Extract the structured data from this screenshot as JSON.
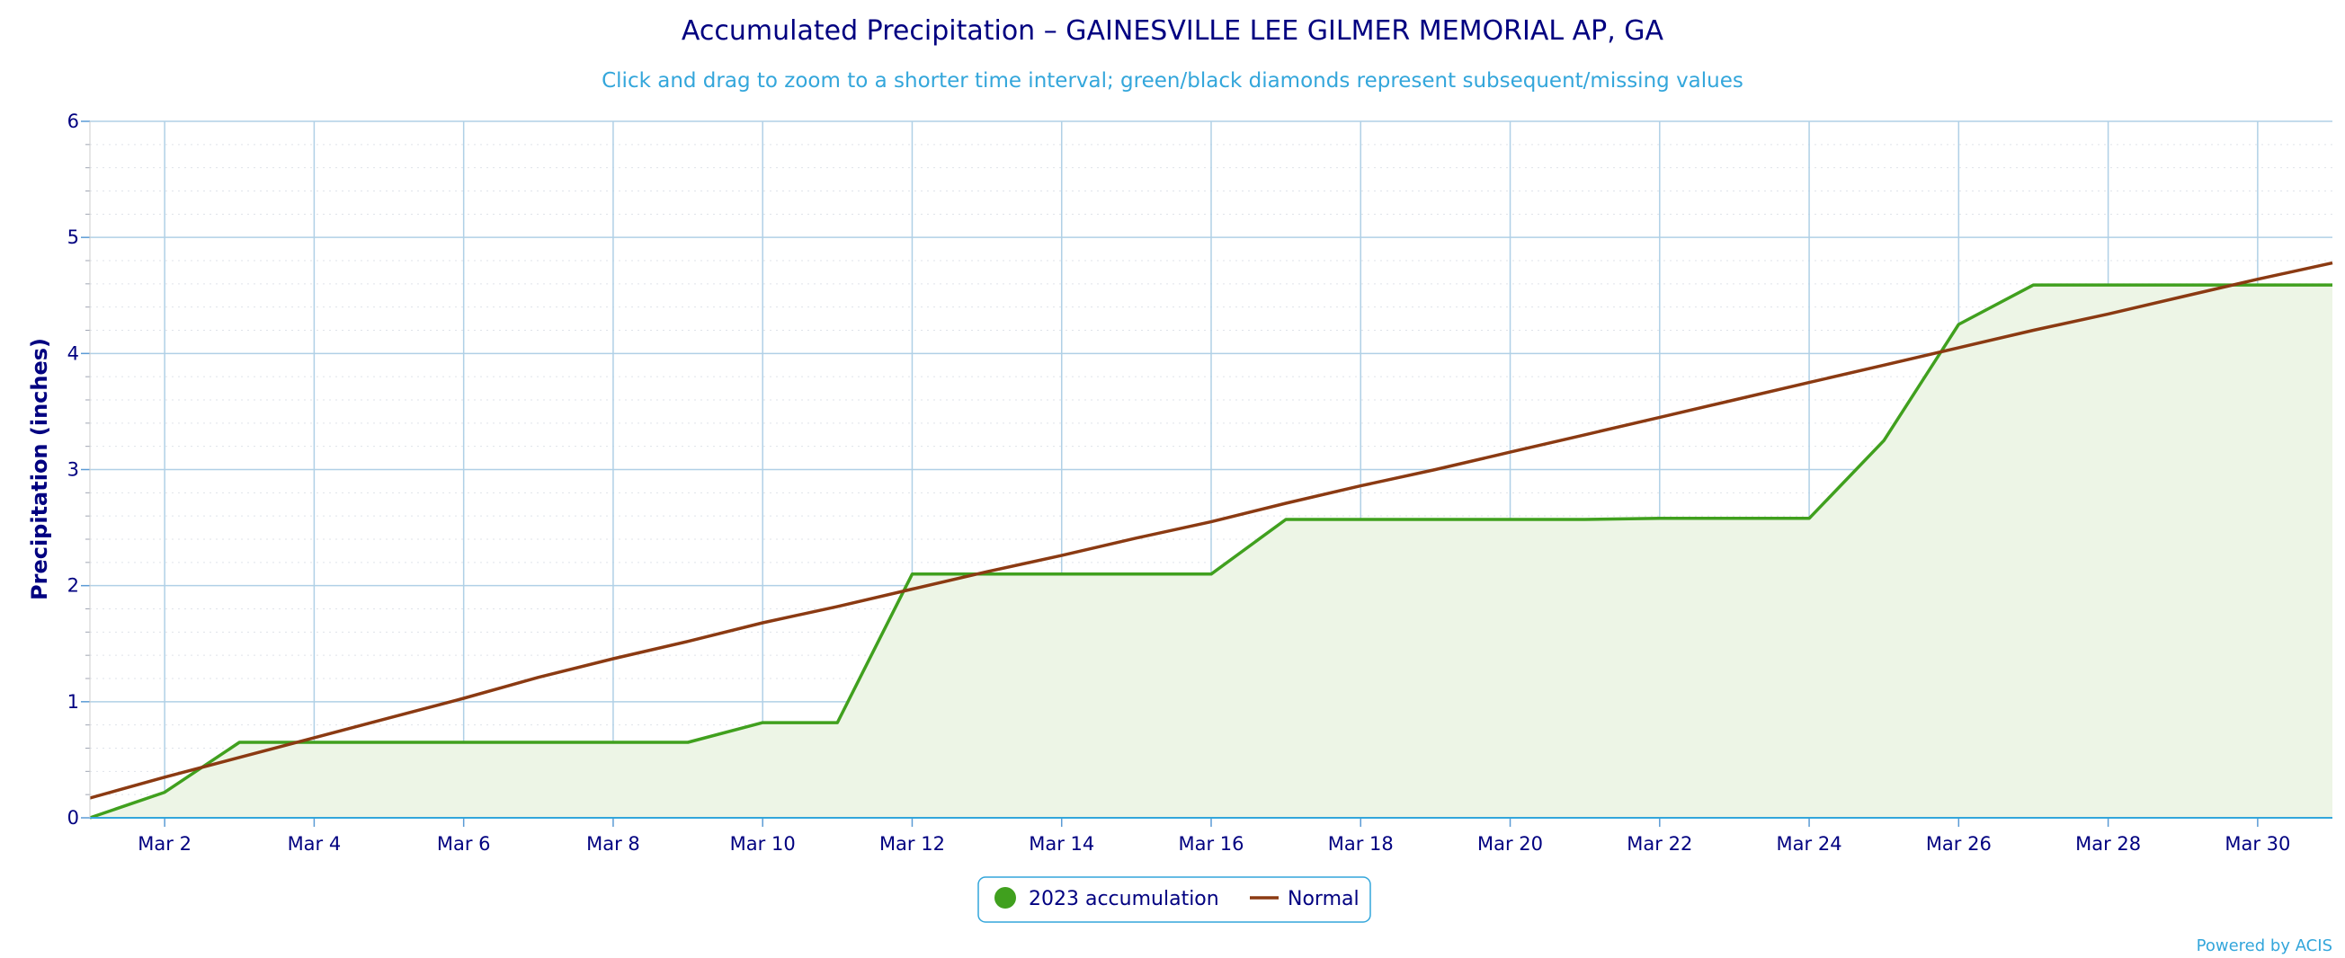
{
  "chart_data": {
    "type": "area",
    "title": "Accumulated Precipitation – GAINESVILLE LEE GILMER MEMORIAL AP, GA",
    "subtitle": "Click and drag to zoom to a shorter time interval; green/black diamonds represent subsequent/missing values",
    "ylabel": "Precipitation (inches)",
    "xlabel": "",
    "ylim": [
      0,
      6
    ],
    "yticks": [
      0,
      1,
      2,
      3,
      4,
      5,
      6
    ],
    "ytick_labels": [
      "0",
      "1",
      "2",
      "3",
      "4",
      "5",
      "6"
    ],
    "xlim": [
      "2023-03-01",
      "2023-03-31"
    ],
    "xticks": [
      "2023-03-02",
      "2023-03-04",
      "2023-03-06",
      "2023-03-08",
      "2023-03-10",
      "2023-03-12",
      "2023-03-14",
      "2023-03-16",
      "2023-03-18",
      "2023-03-20",
      "2023-03-22",
      "2023-03-24",
      "2023-03-26",
      "2023-03-28",
      "2023-03-30"
    ],
    "xtick_labels": [
      "Mar 2",
      "Mar 4",
      "Mar 6",
      "Mar 8",
      "Mar 10",
      "Mar 12",
      "Mar 14",
      "Mar 16",
      "Mar 18",
      "Mar 20",
      "Mar 22",
      "Mar 24",
      "Mar 26",
      "Mar 28",
      "Mar 30"
    ],
    "grid": true,
    "legend_position": "bottom-center",
    "series": [
      {
        "name": "2023 accumulation",
        "type": "area",
        "color": "#40a01e",
        "fill_color": "#edf5e6",
        "x": [
          "2023-03-01",
          "2023-03-02",
          "2023-03-03",
          "2023-03-04",
          "2023-03-05",
          "2023-03-06",
          "2023-03-07",
          "2023-03-08",
          "2023-03-09",
          "2023-03-10",
          "2023-03-11",
          "2023-03-12",
          "2023-03-13",
          "2023-03-14",
          "2023-03-15",
          "2023-03-16",
          "2023-03-17",
          "2023-03-18",
          "2023-03-19",
          "2023-03-20",
          "2023-03-21",
          "2023-03-22",
          "2023-03-23",
          "2023-03-24",
          "2023-03-25",
          "2023-03-26",
          "2023-03-27",
          "2023-03-28",
          "2023-03-29",
          "2023-03-30",
          "2023-03-31"
        ],
        "y": [
          0.0,
          0.22,
          0.65,
          0.65,
          0.65,
          0.65,
          0.65,
          0.65,
          0.65,
          0.82,
          0.82,
          2.1,
          2.1,
          2.1,
          2.1,
          2.1,
          2.57,
          2.57,
          2.57,
          2.57,
          2.57,
          2.58,
          2.58,
          2.58,
          3.25,
          4.25,
          4.59,
          4.59,
          4.59,
          4.59,
          4.59
        ]
      },
      {
        "name": "Normal",
        "type": "line",
        "color": "#8b3a12",
        "x": [
          "2023-03-01",
          "2023-03-02",
          "2023-03-03",
          "2023-03-04",
          "2023-03-05",
          "2023-03-06",
          "2023-03-07",
          "2023-03-08",
          "2023-03-09",
          "2023-03-10",
          "2023-03-11",
          "2023-03-12",
          "2023-03-13",
          "2023-03-14",
          "2023-03-15",
          "2023-03-16",
          "2023-03-17",
          "2023-03-18",
          "2023-03-19",
          "2023-03-20",
          "2023-03-21",
          "2023-03-22",
          "2023-03-23",
          "2023-03-24",
          "2023-03-25",
          "2023-03-26",
          "2023-03-27",
          "2023-03-28",
          "2023-03-29",
          "2023-03-30",
          "2023-03-31"
        ],
        "y": [
          0.17,
          0.35,
          0.52,
          0.69,
          0.86,
          1.03,
          1.21,
          1.37,
          1.52,
          1.68,
          1.82,
          1.97,
          2.12,
          2.26,
          2.41,
          2.55,
          2.71,
          2.86,
          3.0,
          3.15,
          3.3,
          3.45,
          3.6,
          3.75,
          3.9,
          4.05,
          4.2,
          4.34,
          4.49,
          4.64,
          4.78
        ]
      }
    ]
  },
  "credit": "Powered by ACIS"
}
